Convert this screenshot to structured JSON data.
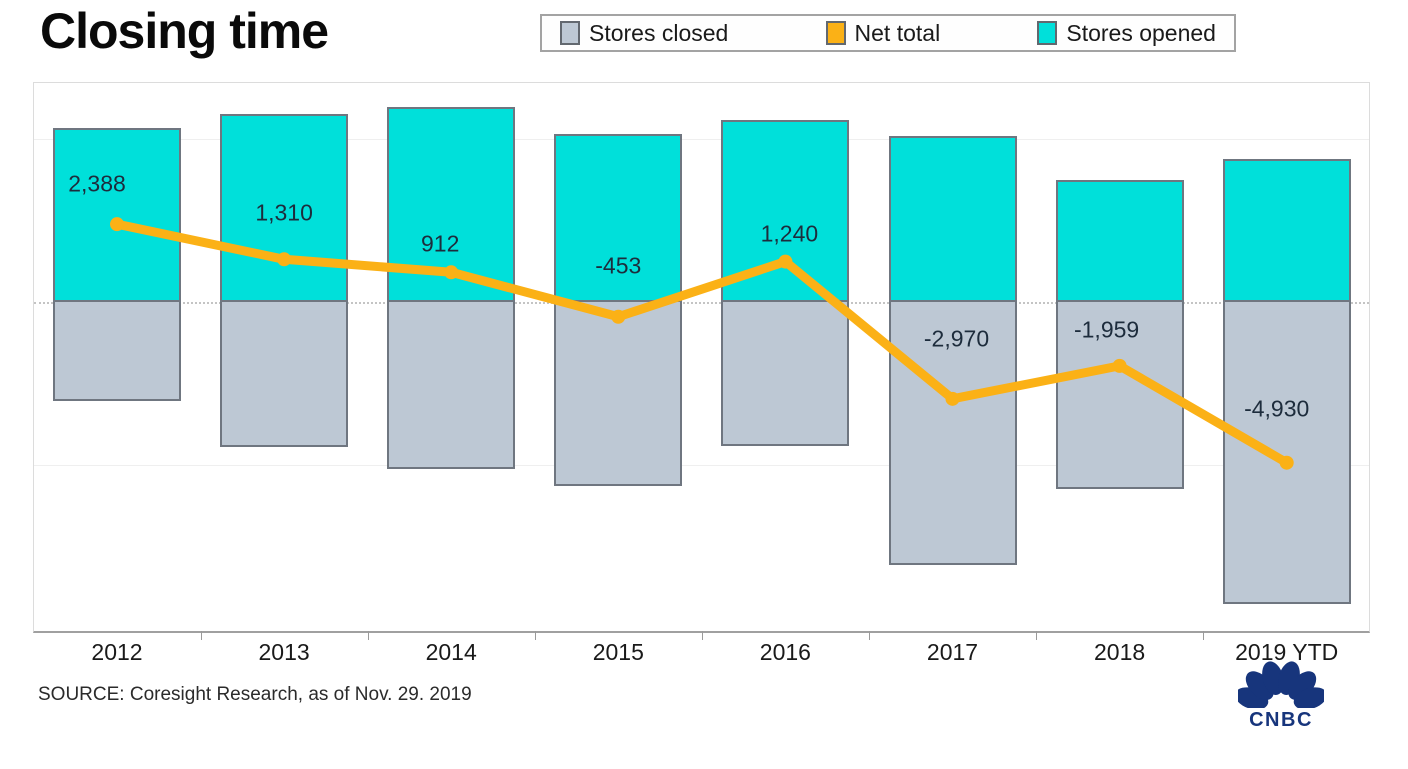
{
  "header": {
    "title": "Closing time"
  },
  "legend": {
    "items": [
      {
        "label": "Stores closed",
        "color": "#BDC8D4"
      },
      {
        "label": "Net total",
        "color": "#FBB116"
      },
      {
        "label": "Stores opened",
        "color": "#00E0DA"
      }
    ]
  },
  "footer": {
    "source": "SOURCE: Coresight Research, as of Nov. 29. 2019",
    "logo_text": "CNBC",
    "logo_color": "#17357c"
  },
  "chart_data": {
    "type": "bar",
    "subtype": "diverging-stacked-bars-with-line-overlay",
    "title": "Closing time",
    "xlabel": "",
    "ylabel": "",
    "categories": [
      "2012",
      "2013",
      "2014",
      "2015",
      "2016",
      "2017",
      "2018",
      "2019 YTD"
    ],
    "series": [
      {
        "name": "Stores opened",
        "render": "bar-above-zero",
        "color": "#00E0DA",
        "values": [
          5340,
          5770,
          5980,
          5150,
          5580,
          5090,
          3740,
          4390
        ],
        "values_estimated_from_pixels": true
      },
      {
        "name": "Stores closed",
        "render": "bar-below-zero",
        "color": "#BDC8D4",
        "values": [
          3040,
          4450,
          5120,
          5640,
          4420,
          8070,
          5740,
          9260
        ],
        "values_estimated_from_pixels": true
      },
      {
        "name": "Net total",
        "render": "line",
        "color": "#FBB116",
        "values": [
          2388,
          1310,
          912,
          -453,
          1240,
          -2970,
          -1959,
          -4930
        ],
        "labels": [
          "2,388",
          "1,310",
          "912",
          "-453",
          "1,240",
          "-2,970",
          "-1,959",
          "-4,930"
        ]
      }
    ],
    "ylim": [
      -10100,
      6720
    ],
    "gridline_values": [
      5000,
      -5000
    ],
    "zero_line_style": "dotted",
    "y_axis_tick_labels_visible": false,
    "grid": true,
    "legend_position": "top-center",
    "label_dx": [
      -20,
      0,
      -11,
      0,
      4,
      4,
      -13,
      -10
    ],
    "label_dy": [
      -40,
      -46,
      -28,
      -51,
      -28,
      -60,
      -36,
      -54
    ]
  }
}
